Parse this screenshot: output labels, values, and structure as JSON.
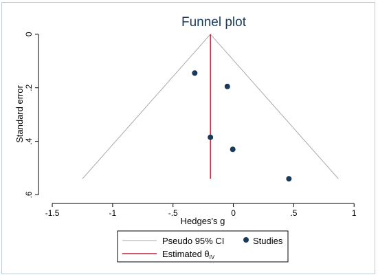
{
  "chart_data": {
    "type": "scatter",
    "title": "Funnel plot",
    "xlabel": "Hedges's g",
    "ylabel": "Standard error",
    "x_ticks": [
      -1.5,
      -1,
      -0.5,
      0,
      0.5,
      1
    ],
    "x_tick_labels": [
      "-1.5",
      "-1",
      "-.5",
      "0",
      ".5",
      "1"
    ],
    "y_ticks": [
      0,
      0.2,
      0.4,
      0.6
    ],
    "y_tick_labels": [
      "0",
      ".2",
      ".4",
      ".6"
    ],
    "xlim": [
      -1.58,
      1.05
    ],
    "ylim": [
      0.64,
      -0.015
    ],
    "y_reversed": true,
    "grid": false,
    "legend_position": "bottom",
    "estimated_effect": -0.19,
    "funnel": {
      "apex": [
        -0.19,
        0
      ],
      "se_max": 0.54,
      "left_base": [
        -1.25,
        0.54
      ],
      "right_base": [
        0.87,
        0.54
      ]
    },
    "series": [
      {
        "name": "Studies",
        "points": [
          {
            "x": -0.32,
            "y": 0.145
          },
          {
            "x": -0.05,
            "y": 0.195
          },
          {
            "x": -0.19,
            "y": 0.385
          },
          {
            "x": -0.005,
            "y": 0.43
          },
          {
            "x": 0.46,
            "y": 0.54
          }
        ]
      }
    ],
    "legend": {
      "ci_label": "Pseudo 95% CI",
      "studies_label": "Studies",
      "estimate_label": "Estimated θ",
      "estimate_sub": "IV"
    },
    "colors": {
      "points": "#1a3a5c",
      "estimate_line": "#c0223b",
      "ci_line": "#a9a9a9",
      "axis": "#000000",
      "title": "#1a3a5c",
      "frame": "#bfc9d6"
    }
  }
}
